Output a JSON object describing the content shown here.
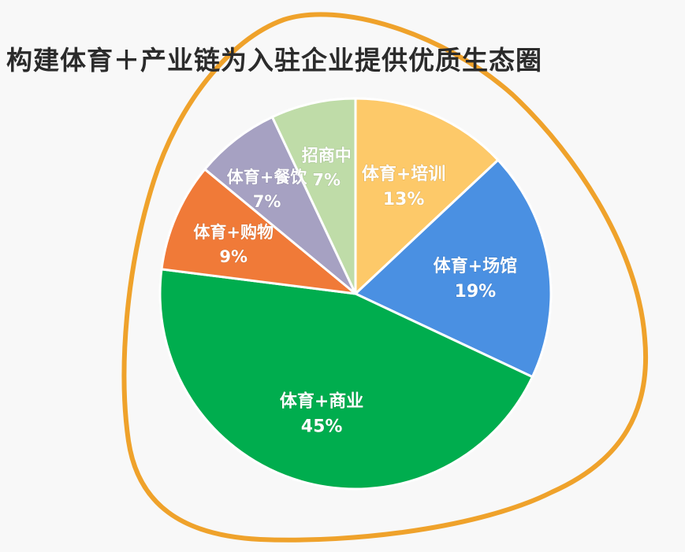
{
  "title": "构建体育＋产业链为入驻企业提供优质生态圈",
  "chart_data": {
    "type": "pie",
    "title": "",
    "start_angle_deg": 0,
    "direction": "clockwise",
    "slices": [
      {
        "name": "体育+培训",
        "value": 13,
        "label": "13%",
        "color": "#FDC969"
      },
      {
        "name": "体育+场馆",
        "value": 19,
        "label": "19%",
        "color": "#4A90E2"
      },
      {
        "name": "体育+商业",
        "value": 45,
        "label": "45%",
        "color": "#00AD4E"
      },
      {
        "name": "体育+购物",
        "value": 9,
        "label": "9%",
        "color": "#F07A38"
      },
      {
        "name": "体育+餐饮",
        "value": 7,
        "label": "7%",
        "color": "#A6A1C2"
      },
      {
        "name": "招商中",
        "value": 7,
        "label": "7%",
        "color": "#BFDCA8"
      }
    ],
    "legend": "none",
    "labels_inside": true
  },
  "decoration": {
    "ring_color": "#EFA22B",
    "background": "#F8F8F8",
    "separator_color": "#FFFFFF"
  }
}
